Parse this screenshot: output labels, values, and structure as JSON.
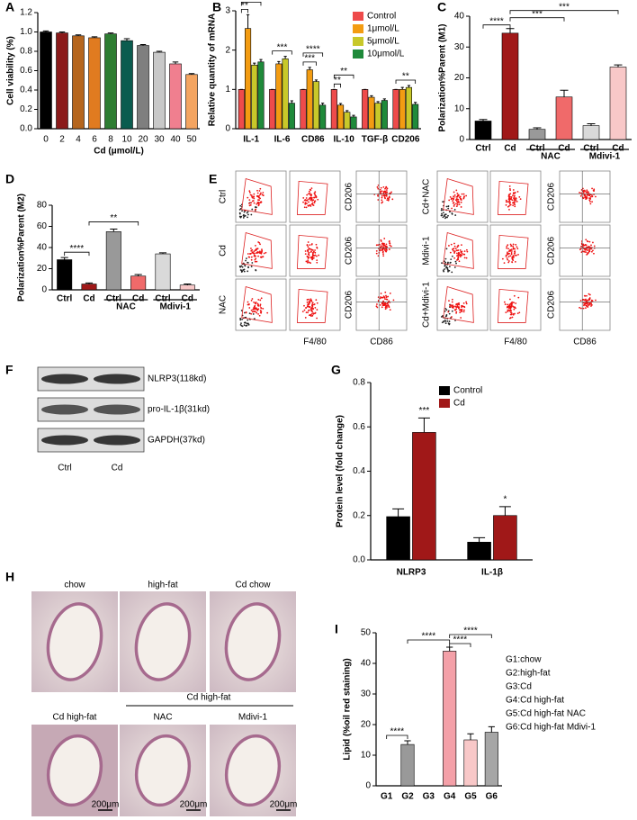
{
  "panel_labels": [
    "A",
    "B",
    "C",
    "D",
    "E",
    "F",
    "G",
    "H",
    "I"
  ],
  "chart_data": [
    {
      "type": "bar",
      "ylabel": "Cell viability (%)",
      "xlabel": "Cd (μmol/L)",
      "categories": [
        "0",
        "2",
        "4",
        "6",
        "8",
        "10",
        "20",
        "30",
        "40",
        "50"
      ],
      "values": [
        1.0,
        0.99,
        0.96,
        0.94,
        0.98,
        0.91,
        0.86,
        0.79,
        0.67,
        0.56
      ],
      "errors": [
        0.01,
        0.01,
        0.01,
        0.01,
        0.01,
        0.02,
        0.01,
        0.01,
        0.02,
        0.01
      ],
      "colors": [
        "#000000",
        "#8b1a1a",
        "#b5651d",
        "#e07b20",
        "#2e7d32",
        "#0b5c4f",
        "#7f7f7f",
        "#c8c8c8",
        "#f07f8f",
        "#f4a460"
      ],
      "ylim": [
        0,
        1.2
      ],
      "yticks": [
        {
          "value": 0,
          "label": "0.0"
        },
        0.2,
        0.4,
        0.6,
        0.8,
        {
          "value": 1,
          "label": "1.0"
        },
        1.2
      ]
    },
    {
      "type": "bar",
      "ylabel": "Relative quantity of  mRNA",
      "categories": [
        "IL-1",
        "IL-6",
        "CD86",
        "IL-10",
        "TGF-β",
        "CD206"
      ],
      "series": [
        {
          "name": "Control",
          "color": "#ee4b4b",
          "values": [
            1,
            1,
            1,
            1,
            1,
            1
          ],
          "errors": [
            0,
            0,
            0,
            0,
            0,
            0
          ]
        },
        {
          "name": "1μmol/L",
          "color": "#f39c12",
          "values": [
            2.55,
            1.65,
            1.5,
            0.6,
            0.8,
            1.0
          ],
          "errors": [
            0.35,
            0.06,
            0.06,
            0.04,
            0.04,
            0.05
          ]
        },
        {
          "name": "5μmol/L",
          "color": "#c8c82a",
          "values": [
            1.62,
            1.78,
            1.2,
            0.42,
            0.65,
            1.05
          ],
          "errors": [
            0.05,
            0.06,
            0.04,
            0.04,
            0.04,
            0.05
          ]
        },
        {
          "name": "10μmol/L",
          "color": "#1f8a3a",
          "values": [
            1.7,
            0.65,
            0.6,
            0.3,
            0.72,
            0.62
          ],
          "errors": [
            0.06,
            0.06,
            0.05,
            0.04,
            0.04,
            0.05
          ]
        }
      ],
      "ylim": [
        0,
        3
      ],
      "yticks": [
        0,
        1,
        2,
        3
      ],
      "annotations": [
        "**",
        "*",
        "***",
        "***",
        "****",
        "**",
        "**",
        "**"
      ]
    },
    {
      "type": "bar",
      "ylabel": "Polarization%Parent (M1)",
      "categories": [
        "Ctrl",
        "Cd",
        "Ctrl",
        "Cd",
        "Ctrl",
        "Cd"
      ],
      "groups": [
        "NAC",
        "Mdivi-1"
      ],
      "values": [
        6,
        34.5,
        3.3,
        13.8,
        4.5,
        23.5
      ],
      "errors": [
        0.5,
        1.5,
        0.5,
        2.2,
        0.6,
        0.7
      ],
      "colors": [
        "#000000",
        "#a01818",
        "#999999",
        "#f06a6a",
        "#d9d9d9",
        "#f8c8c8"
      ],
      "ylim": [
        0,
        40
      ],
      "yticks": [
        0,
        10,
        20,
        30,
        40
      ],
      "annotations": [
        "****",
        "***",
        "***"
      ]
    },
    {
      "type": "bar",
      "ylabel": "Polarization%Parent (M2)",
      "categories": [
        "Ctrl",
        "Cd",
        "Ctrl",
        "Cd",
        "Ctrl",
        "Cd"
      ],
      "groups": [
        "NAC",
        "Mdivi-1"
      ],
      "values": [
        28.5,
        5.5,
        55,
        13,
        34,
        4.5
      ],
      "errors": [
        2,
        1,
        2.5,
        1.5,
        1,
        1
      ],
      "colors": [
        "#000000",
        "#a01818",
        "#999999",
        "#f06a6a",
        "#d9d9d9",
        "#f8c8c8"
      ],
      "ylim": [
        0,
        80
      ],
      "yticks": [
        0,
        20,
        40,
        60,
        80
      ],
      "annotations": [
        "****",
        "**"
      ]
    },
    {
      "type": "bar",
      "ylabel": "Protein level (fold change)",
      "categories": [
        "NLRP3",
        "IL-1β"
      ],
      "series": [
        {
          "name": "Control",
          "color": "#000000",
          "values": [
            0.195,
            0.08
          ],
          "errors": [
            0.035,
            0.02
          ]
        },
        {
          "name": "Cd",
          "color": "#a01818",
          "values": [
            0.575,
            0.2
          ],
          "errors": [
            0.065,
            0.04
          ]
        }
      ],
      "ylim": [
        0,
        0.8
      ],
      "yticks": [
        {
          "value": 0,
          "label": "0.0"
        },
        0.2,
        0.4,
        0.6,
        0.8
      ],
      "annotations": [
        "***",
        "*"
      ]
    },
    {
      "type": "bar",
      "ylabel": "Lipid (%oil red staining)",
      "categories": [
        "G1",
        "G2",
        "G3",
        "G4",
        "G5",
        "G6"
      ],
      "values": [
        0,
        13.5,
        0,
        44,
        15,
        17.5
      ],
      "errors": [
        0,
        1.2,
        0,
        1.3,
        2,
        1.8
      ],
      "colors": [
        "#ffffff",
        "#999999",
        "#ffffff",
        "#f4a0a8",
        "#f8c8c8",
        "#a6a6a6"
      ],
      "ylim": [
        0,
        50
      ],
      "yticks": [
        0,
        10,
        20,
        30,
        40,
        50
      ],
      "annotations": [
        "****",
        "****",
        "****",
        "****"
      ],
      "legend_notes": [
        "G1:chow",
        "G2:high-fat",
        "G3:Cd",
        "G4:Cd high-fat",
        "G5:Cd high-fat NAC",
        "G6:Cd high-fat Mdivi-1"
      ]
    }
  ],
  "flow": {
    "row_labels": [
      "Ctrl",
      "Cd",
      "NAC",
      "Cd+NAC",
      "Mdivi-1",
      "Cd+Mdivi-1"
    ],
    "y_axis_label": "CD206",
    "x_axis_labels": [
      "F4/80",
      "CD86"
    ]
  },
  "blot": {
    "bands": [
      "NLRP3(118kd)",
      "pro-IL-1β(31kd)",
      "GAPDH(37kd)"
    ],
    "lanes": [
      "Ctrl",
      "Cd"
    ]
  },
  "histology": {
    "top": [
      "chow",
      "high-fat",
      "Cd chow"
    ],
    "group": "Cd high-fat",
    "bottom": [
      "Cd high-fat",
      "NAC",
      "Mdivi-1"
    ],
    "scale_bar": "200μm"
  }
}
